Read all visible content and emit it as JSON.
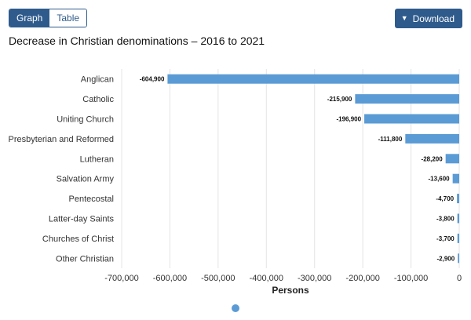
{
  "controls": {
    "graph_label": "Graph",
    "table_label": "Table",
    "download_label": "Download",
    "download_icon": "chevron-down-icon"
  },
  "chart_data": {
    "type": "bar",
    "orientation": "horizontal",
    "title": "Decrease in Christian denominations – 2016 to 2021",
    "xlabel": "Persons",
    "ylabel": "",
    "xlim": [
      -700000,
      0
    ],
    "xticks": [
      -700000,
      -600000,
      -500000,
      -400000,
      -300000,
      -200000,
      -100000,
      0
    ],
    "xtick_labels": [
      "-700,000",
      "-600,000",
      "-500,000",
      "-400,000",
      "-300,000",
      "-200,000",
      "-100,000",
      "0"
    ],
    "grid": true,
    "bar_color": "#5b9bd5",
    "categories": [
      "Anglican",
      "Catholic",
      "Uniting Church",
      "Presbyterian and Reformed",
      "Lutheran",
      "Salvation Army",
      "Pentecostal",
      "Latter-day Saints",
      "Churches of Christ",
      "Other Christian"
    ],
    "values": [
      -604900,
      -215900,
      -196900,
      -111800,
      -28200,
      -13600,
      -4700,
      -3800,
      -3700,
      -2900
    ],
    "value_labels": [
      "-604,900",
      "-215,900",
      "-196,900",
      "-111,800",
      "-28,200",
      "-13,600",
      "-4,700",
      "-3,800",
      "-3,700",
      "-2,900"
    ]
  }
}
